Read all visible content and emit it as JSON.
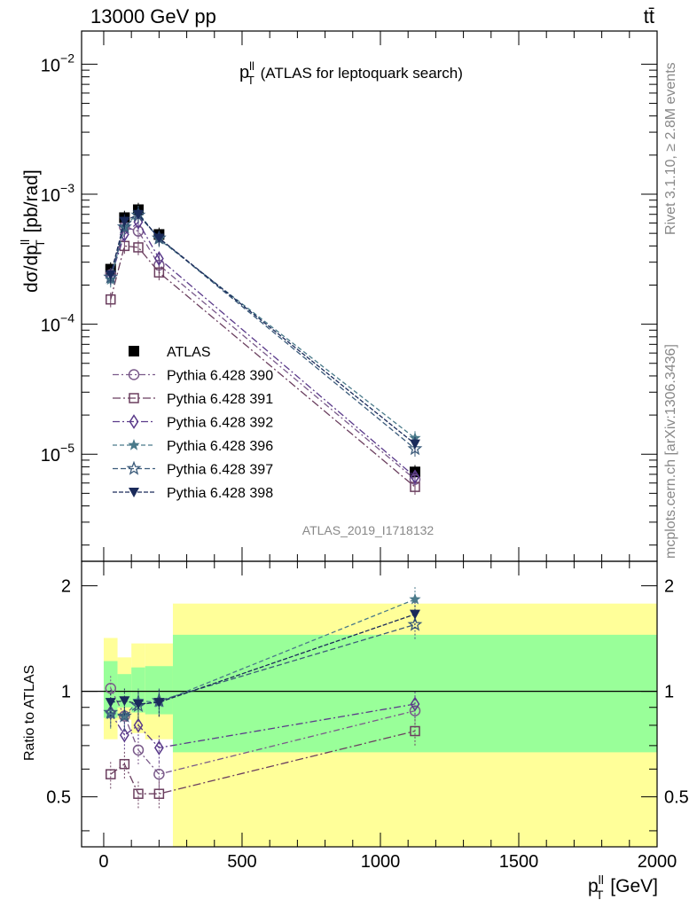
{
  "header": {
    "left_label": "13000 GeV pp",
    "right_label": "tt̄"
  },
  "side_labels": {
    "rivet": "Rivet 3.1.10, ≥ 2.8M events",
    "mcplots": "mcplots.cern.ch [arXiv:1306.3436]"
  },
  "colors": {
    "data": "#000000",
    "p390": "#7a5a8a",
    "p391": "#6b3f5f",
    "p392": "#5a3a8a",
    "p396": "#4a7a8a",
    "p397": "#3a5a7a",
    "p398": "#1a2a5a",
    "band_inner": "#99ff99",
    "band_outer": "#ffff99"
  },
  "chart_data": [
    {
      "type": "line",
      "title_main": "p",
      "title_sup": "ll",
      "title_sub": "T",
      "title_rest": " (ATLAS for leptoquark search)",
      "ylabel": "dσ/dp^ll_T [pb/rad]",
      "ylabel_parts": {
        "a": "dσ/dp",
        "sup": "ll",
        "sub": "T",
        "b": " [pb/rad]"
      },
      "yscale": "log",
      "ylim": [
        1.5e-06,
        0.018
      ],
      "yticks": [
        {
          "value": 1e-05,
          "base": "10",
          "exp": "−5"
        },
        {
          "value": 0.0001,
          "base": "10",
          "exp": "−4"
        },
        {
          "value": 0.001,
          "base": "10",
          "exp": "−3"
        },
        {
          "value": 0.01,
          "base": "10",
          "exp": "−2"
        }
      ],
      "xlim": [
        -80,
        2000
      ],
      "analysis_label": "ATLAS_2019_I1718132",
      "legend_placement": "lower-left",
      "x": [
        25,
        75,
        125,
        200,
        1125
      ],
      "series": [
        {
          "name": "ATLAS",
          "marker": "square-filled",
          "values": [
            0.000265,
            0.00066,
            0.00076,
            0.00049,
            7.3e-06
          ]
        },
        {
          "name": "Pythia 6.428 390",
          "marker": "circle",
          "values": [
            0.00024,
            0.00056,
            0.00052,
            0.000285,
            6.4e-06
          ]
        },
        {
          "name": "Pythia 6.428 391",
          "marker": "square",
          "values": [
            0.000155,
            0.0004,
            0.00039,
            0.00025,
            5.6e-06
          ]
        },
        {
          "name": "Pythia 6.428 392",
          "marker": "diamond",
          "values": [
            0.00023,
            0.00049,
            0.00061,
            0.00032,
            6.7e-06
          ]
        },
        {
          "name": "Pythia 6.428 396",
          "marker": "star-filled",
          "values": [
            0.00022,
            0.00056,
            0.00072,
            0.00045,
            1.33e-05
          ]
        },
        {
          "name": "Pythia 6.428 397",
          "marker": "star",
          "values": [
            0.00023,
            0.00056,
            0.00069,
            0.00046,
            1.1e-05
          ]
        },
        {
          "name": "Pythia 6.428 398",
          "marker": "triangle-down-filled",
          "values": [
            0.00024,
            0.00062,
            0.0007,
            0.00046,
            1.2e-05
          ]
        }
      ]
    },
    {
      "type": "line",
      "ylabel": "Ratio to ATLAS",
      "yscale": "log",
      "ylim": [
        0.36,
        2.35
      ],
      "yticks": [
        {
          "value": 0.5,
          "label": "0.5"
        },
        {
          "value": 1,
          "label": "1"
        },
        {
          "value": 2,
          "label": "2"
        }
      ],
      "xlim": [
        -80,
        2000
      ],
      "xticks": [
        0,
        500,
        1000,
        1500,
        2000
      ],
      "xlabel_parts": {
        "a": "p",
        "sup": "ll",
        "sub": "T",
        "b": " [GeV]"
      },
      "bands": [
        {
          "x0": 0,
          "x1": 50,
          "inner": [
            0.84,
            1.22
          ],
          "outer": [
            0.73,
            1.42
          ]
        },
        {
          "x0": 50,
          "x1": 100,
          "inner": [
            0.9,
            1.12
          ],
          "outer": [
            0.83,
            1.25
          ]
        },
        {
          "x0": 100,
          "x1": 150,
          "inner": [
            0.87,
            1.17
          ],
          "outer": [
            0.76,
            1.37
          ]
        },
        {
          "x0": 150,
          "x1": 250,
          "inner": [
            0.86,
            1.18
          ],
          "outer": [
            0.73,
            1.37
          ]
        },
        {
          "x0": 250,
          "x1": 2000,
          "inner": [
            0.67,
            1.45
          ],
          "outer": [
            0.36,
            1.78
          ]
        }
      ],
      "x": [
        25,
        75,
        125,
        200,
        1125
      ],
      "series": [
        {
          "name": "Pythia 6.428 390",
          "values": [
            1.02,
            0.85,
            0.68,
            0.58,
            0.88
          ]
        },
        {
          "name": "Pythia 6.428 391",
          "values": [
            0.58,
            0.62,
            0.51,
            0.51,
            0.77
          ]
        },
        {
          "name": "Pythia 6.428 392",
          "values": [
            0.87,
            0.75,
            0.8,
            0.69,
            0.92
          ]
        },
        {
          "name": "Pythia 6.428 396",
          "values": [
            0.86,
            0.85,
            0.94,
            0.93,
            1.83
          ]
        },
        {
          "name": "Pythia 6.428 397",
          "values": [
            0.87,
            0.85,
            0.91,
            0.94,
            1.55
          ]
        },
        {
          "name": "Pythia 6.428 398",
          "values": [
            0.93,
            0.94,
            0.92,
            0.93,
            1.66
          ]
        }
      ]
    }
  ]
}
